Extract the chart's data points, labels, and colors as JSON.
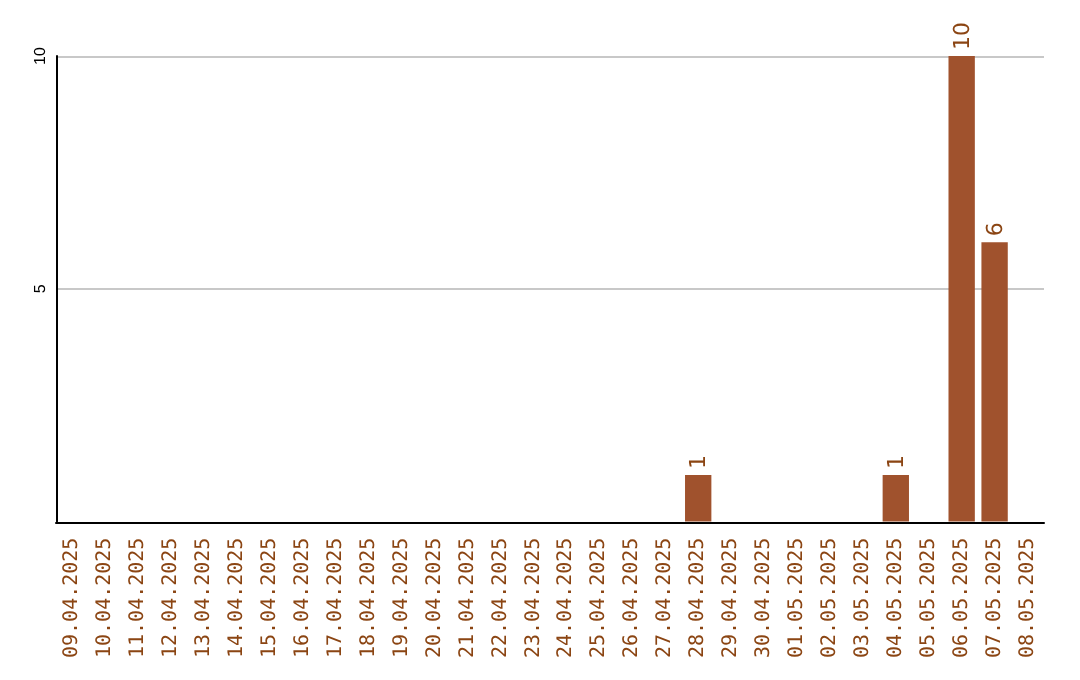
{
  "chart_data": {
    "type": "bar",
    "categories": [
      "09.04.2025",
      "10.04.2025",
      "11.04.2025",
      "12.04.2025",
      "13.04.2025",
      "14.04.2025",
      "15.04.2025",
      "16.04.2025",
      "17.04.2025",
      "18.04.2025",
      "19.04.2025",
      "20.04.2025",
      "21.04.2025",
      "22.04.2025",
      "23.04.2025",
      "24.04.2025",
      "25.04.2025",
      "26.04.2025",
      "27.04.2025",
      "28.04.2025",
      "29.04.2025",
      "30.04.2025",
      "01.05.2025",
      "02.05.2025",
      "03.05.2025",
      "04.05.2025",
      "05.05.2025",
      "06.05.2025",
      "07.05.2025",
      "08.05.2025"
    ],
    "values": [
      0,
      0,
      0,
      0,
      0,
      0,
      0,
      0,
      0,
      0,
      0,
      0,
      0,
      0,
      0,
      0,
      0,
      0,
      0,
      1,
      0,
      0,
      0,
      0,
      0,
      1,
      0,
      10,
      6,
      0
    ],
    "value_labels": [
      null,
      null,
      null,
      null,
      null,
      null,
      null,
      null,
      null,
      null,
      null,
      null,
      null,
      null,
      null,
      null,
      null,
      null,
      null,
      "1",
      null,
      null,
      null,
      null,
      null,
      "1",
      null,
      "10",
      "6",
      null
    ],
    "color": "#a0522d",
    "ylim": [
      0,
      10
    ],
    "yticks": [
      5,
      10
    ],
    "grid": "y"
  }
}
